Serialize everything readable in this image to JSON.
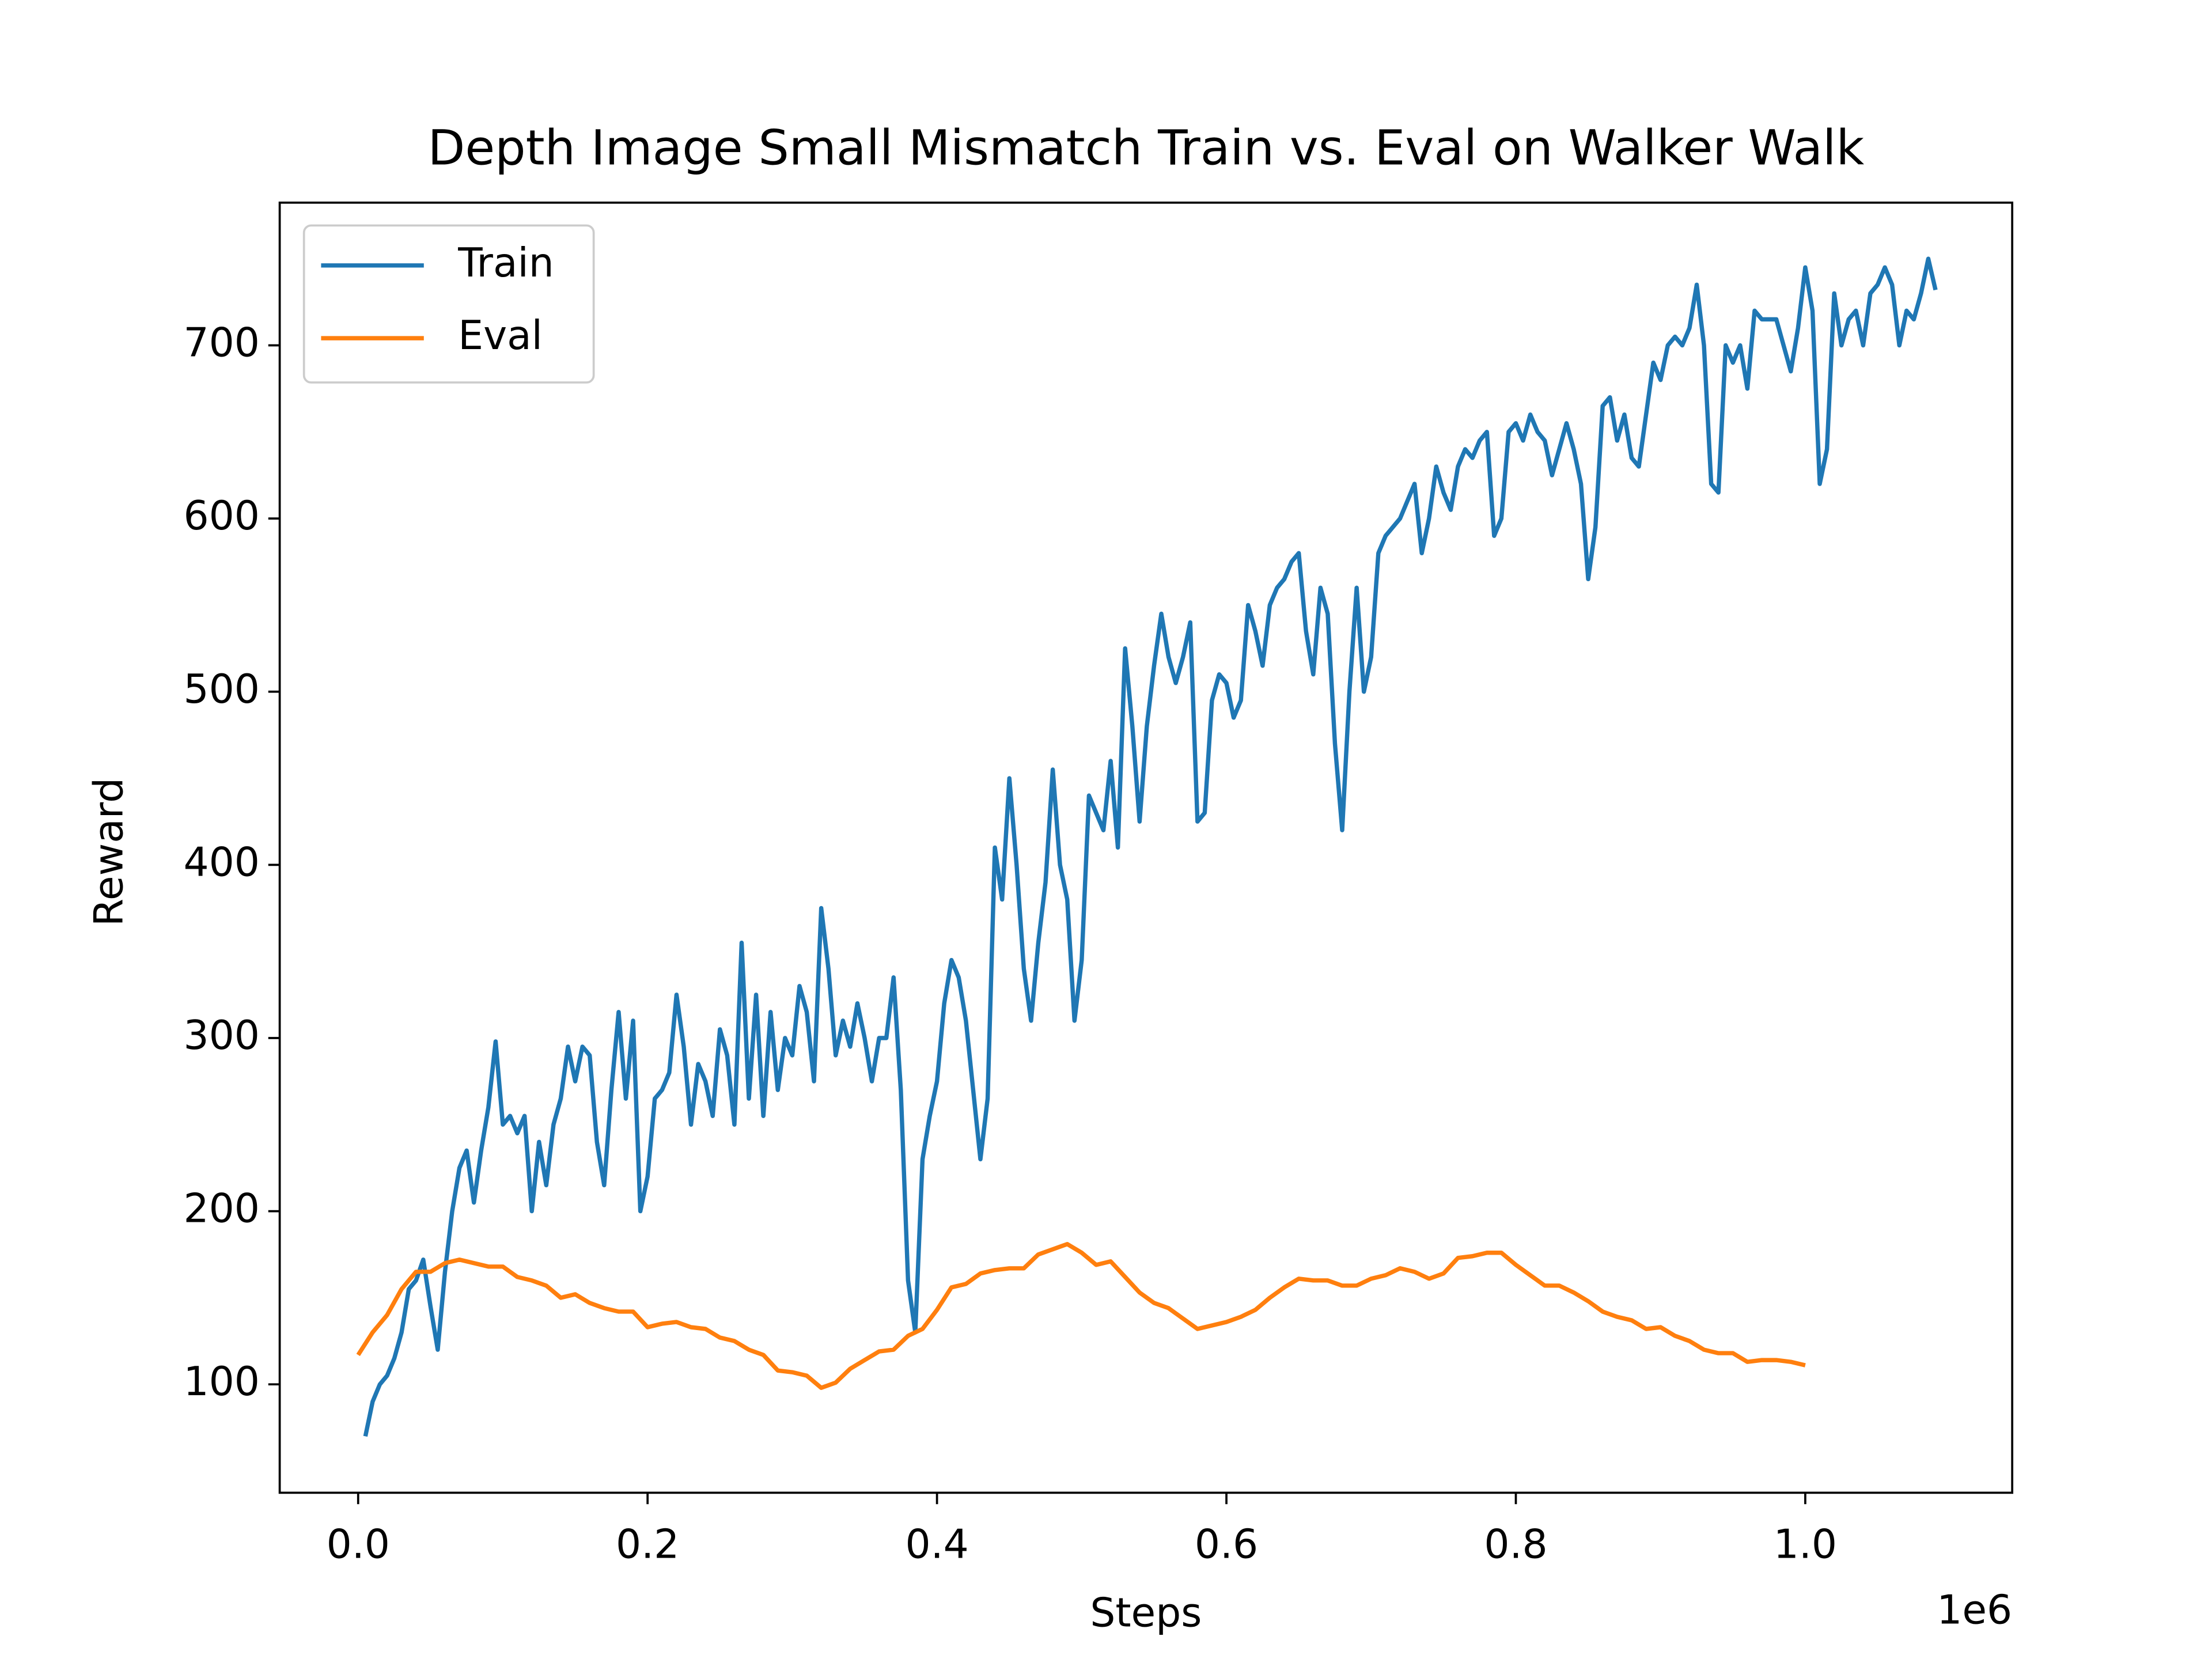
{
  "chart_data": {
    "type": "line",
    "title": "Depth Image Small Mismatch Train vs. Eval on Walker Walk",
    "x_label": "Steps",
    "y_label": "Reward",
    "x_offset_label": "1e6",
    "xlim": [
      -54200,
      1143000
    ],
    "ylim": [
      37.4,
      782.4
    ],
    "xticks": [
      {
        "value": 0,
        "label": "0.0"
      },
      {
        "value": 200000,
        "label": "0.2"
      },
      {
        "value": 400000,
        "label": "0.4"
      },
      {
        "value": 600000,
        "label": "0.6"
      },
      {
        "value": 800000,
        "label": "0.8"
      },
      {
        "value": 1000000,
        "label": "1.0"
      }
    ],
    "yticks": [
      100,
      200,
      300,
      400,
      500,
      600,
      700
    ],
    "grid": false,
    "legend": "upper left",
    "series": [
      {
        "name": "Train",
        "color": "#1f77b4",
        "x": [
          5000,
          10000,
          15000,
          20000,
          25000,
          30000,
          35000,
          40000,
          45000,
          50000,
          55000,
          60000,
          65000,
          70000,
          75000,
          80000,
          85000,
          90000,
          95000,
          100000,
          105000,
          110000,
          115000,
          120000,
          125000,
          130000,
          135000,
          140000,
          145000,
          150000,
          155000,
          160000,
          165000,
          170000,
          175000,
          180000,
          185000,
          190000,
          195000,
          200000,
          205000,
          210000,
          215000,
          220000,
          225000,
          230000,
          235000,
          240000,
          245000,
          250000,
          255000,
          260000,
          265000,
          270000,
          275000,
          280000,
          285000,
          290000,
          295000,
          300000,
          305000,
          310000,
          315000,
          320000,
          325000,
          330000,
          335000,
          340000,
          345000,
          350000,
          355000,
          360000,
          365000,
          370000,
          375000,
          380000,
          385000,
          390000,
          395000,
          400000,
          405000,
          410000,
          415000,
          420000,
          425000,
          430000,
          435000,
          440000,
          445000,
          450000,
          455000,
          460000,
          465000,
          470000,
          475000,
          480000,
          485000,
          490000,
          495000,
          500000,
          505000,
          510000,
          515000,
          520000,
          525000,
          530000,
          535000,
          540000,
          545000,
          550000,
          555000,
          560000,
          565000,
          570000,
          575000,
          580000,
          585000,
          590000,
          595000,
          600000,
          605000,
          610000,
          615000,
          620000,
          625000,
          630000,
          635000,
          640000,
          645000,
          650000,
          655000,
          660000,
          665000,
          670000,
          675000,
          680000,
          685000,
          690000,
          695000,
          700000,
          705000,
          710000,
          715000,
          720000,
          725000,
          730000,
          735000,
          740000,
          745000,
          750000,
          755000,
          760000,
          765000,
          770000,
          775000,
          780000,
          785000,
          790000,
          795000,
          800000,
          805000,
          810000,
          815000,
          820000,
          825000,
          830000,
          835000,
          840000,
          845000,
          850000,
          855000,
          860000,
          865000,
          870000,
          875000,
          880000,
          885000,
          890000,
          895000,
          900000,
          905000,
          910000,
          915000,
          920000,
          925000,
          930000,
          935000,
          940000,
          945000,
          950000,
          955000,
          960000,
          965000,
          970000,
          975000,
          980000,
          985000,
          990000,
          995000,
          1000000,
          1005000,
          1010000,
          1015000,
          1020000,
          1025000,
          1030000,
          1035000,
          1040000,
          1045000,
          1050000,
          1055000,
          1060000,
          1065000,
          1070000,
          1075000,
          1080000,
          1085000,
          1090000
        ],
        "values": [
          70,
          90,
          100,
          105,
          115,
          130,
          155,
          160,
          172,
          145,
          120,
          165,
          200,
          225,
          235,
          205,
          235,
          260,
          298,
          250,
          255,
          245,
          255,
          200,
          240,
          215,
          250,
          265,
          295,
          275,
          295,
          290,
          240,
          215,
          270,
          315,
          265,
          310,
          200,
          220,
          265,
          270,
          280,
          325,
          295,
          250,
          285,
          275,
          255,
          305,
          290,
          250,
          355,
          265,
          325,
          255,
          315,
          270,
          300,
          290,
          330,
          315,
          275,
          375,
          340,
          290,
          310,
          295,
          320,
          300,
          275,
          300,
          300,
          335,
          270,
          160,
          130,
          230,
          255,
          275,
          320,
          345,
          335,
          310,
          270,
          230,
          265,
          410,
          380,
          450,
          400,
          340,
          310,
          355,
          390,
          455,
          400,
          380,
          310,
          345,
          440,
          430,
          420,
          460,
          410,
          525,
          480,
          425,
          480,
          515,
          545,
          520,
          505,
          520,
          540,
          425,
          430,
          495,
          510,
          505,
          485,
          495,
          550,
          535,
          515,
          550,
          560,
          565,
          575,
          580,
          535,
          510,
          560,
          545,
          470,
          420,
          500,
          560,
          500,
          520,
          580,
          590,
          595,
          600,
          610,
          620,
          580,
          600,
          630,
          615,
          605,
          630,
          640,
          635,
          645,
          650,
          590,
          600,
          650,
          655,
          645,
          660,
          650,
          645,
          625,
          640,
          655,
          640,
          620,
          565,
          595,
          665,
          670,
          645,
          660,
          635,
          630,
          660,
          690,
          680,
          700,
          705,
          700,
          710,
          735,
          700,
          620,
          615,
          700,
          690,
          700,
          675,
          720,
          715,
          715,
          715,
          700,
          685,
          710,
          745,
          720,
          620,
          640,
          730,
          700,
          715,
          720,
          700,
          730,
          735,
          745,
          735,
          700,
          720,
          715,
          730,
          750,
          732
        ]
      },
      {
        "name": "Eval",
        "color": "#ff7f0e",
        "x": [
          0,
          10000,
          20000,
          30000,
          40000,
          50000,
          60000,
          70000,
          80000,
          90000,
          100000,
          110000,
          120000,
          130000,
          140000,
          150000,
          160000,
          170000,
          180000,
          190000,
          200000,
          210000,
          220000,
          230000,
          240000,
          250000,
          260000,
          270000,
          280000,
          290000,
          300000,
          310000,
          320000,
          330000,
          340000,
          350000,
          360000,
          370000,
          380000,
          390000,
          400000,
          410000,
          420000,
          430000,
          440000,
          450000,
          460000,
          470000,
          480000,
          490000,
          500000,
          510000,
          520000,
          530000,
          540000,
          550000,
          560000,
          570000,
          580000,
          590000,
          600000,
          610000,
          620000,
          630000,
          640000,
          650000,
          660000,
          670000,
          680000,
          690000,
          700000,
          710000,
          720000,
          730000,
          740000,
          750000,
          760000,
          770000,
          780000,
          790000,
          800000,
          810000,
          820000,
          830000,
          840000,
          850000,
          860000,
          870000,
          880000,
          890000,
          900000,
          910000,
          920000,
          930000,
          940000,
          950000,
          960000,
          970000,
          980000,
          990000,
          1000000
        ],
        "values": [
          117,
          130,
          140,
          155,
          165,
          165,
          170,
          172,
          170,
          168,
          168,
          162,
          160,
          157,
          150,
          152,
          147,
          144,
          142,
          142,
          133,
          135,
          136,
          133,
          132,
          127,
          125,
          120,
          117,
          108,
          107,
          105,
          98,
          101,
          109,
          114,
          119,
          120,
          128,
          132,
          143,
          156,
          158,
          164,
          166,
          167,
          167,
          175,
          178,
          181,
          176,
          169,
          171,
          162,
          153,
          147,
          144,
          138,
          132,
          134,
          136,
          139,
          143,
          150,
          156,
          161,
          160,
          160,
          157,
          157,
          161,
          163,
          167,
          165,
          161,
          164,
          173,
          174,
          176,
          176,
          169,
          163,
          157,
          157,
          153,
          148,
          142,
          139,
          137,
          132,
          133,
          128,
          125,
          120,
          118,
          118,
          113,
          114,
          114,
          113,
          111
        ]
      }
    ]
  }
}
